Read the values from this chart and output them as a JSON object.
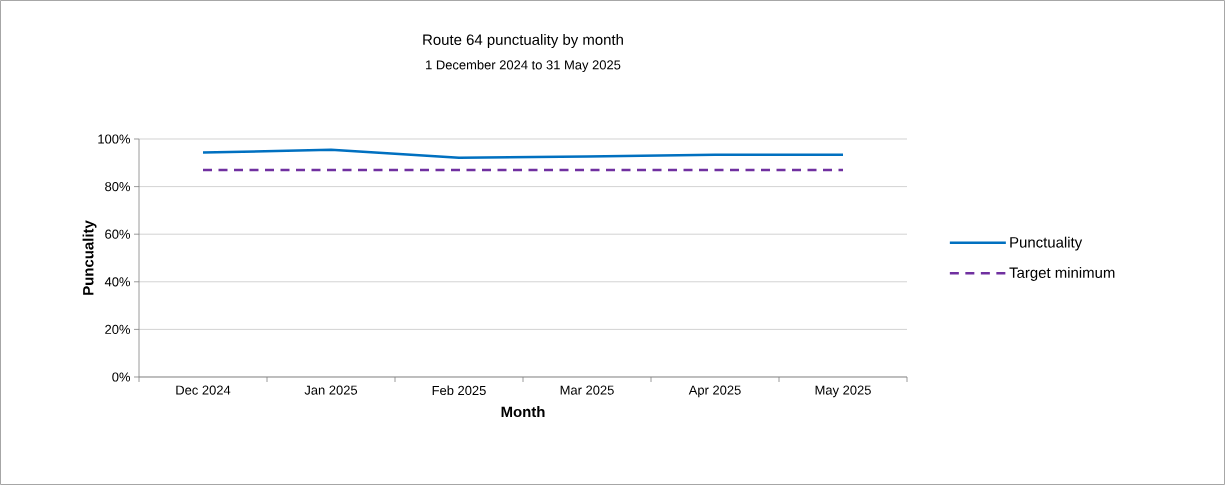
{
  "chart_data": {
    "type": "line",
    "title": "Route 64 punctuality by month",
    "subtitle": "1 December 2024 to 31 May 2025",
    "xlabel": "Month",
    "ylabel": "Puncuality",
    "categories": [
      "Dec 2024",
      "Jan 2025",
      "Feb 2025",
      "Mar 2025",
      "Apr 2025",
      "May 2025"
    ],
    "series": [
      {
        "name": "Punctuality",
        "color": "#0070c0",
        "line_style": "solid",
        "values": [
          94.3,
          95.5,
          92.1,
          92.6,
          93.4,
          93.4
        ]
      },
      {
        "name": "Target minimum",
        "color": "#7030a0",
        "line_style": "dashed",
        "values": [
          87,
          87,
          87,
          87,
          87,
          87
        ]
      }
    ],
    "ylim": [
      0,
      100
    ],
    "yticks": [
      {
        "value": 0,
        "label": "0%"
      },
      {
        "value": 20,
        "label": "20%"
      },
      {
        "value": 40,
        "label": "40%"
      },
      {
        "value": 60,
        "label": "60%"
      },
      {
        "value": 80,
        "label": "80%"
      },
      {
        "value": 100,
        "label": "100%"
      }
    ],
    "grid": "y",
    "legend": "right",
    "marker": "none"
  }
}
